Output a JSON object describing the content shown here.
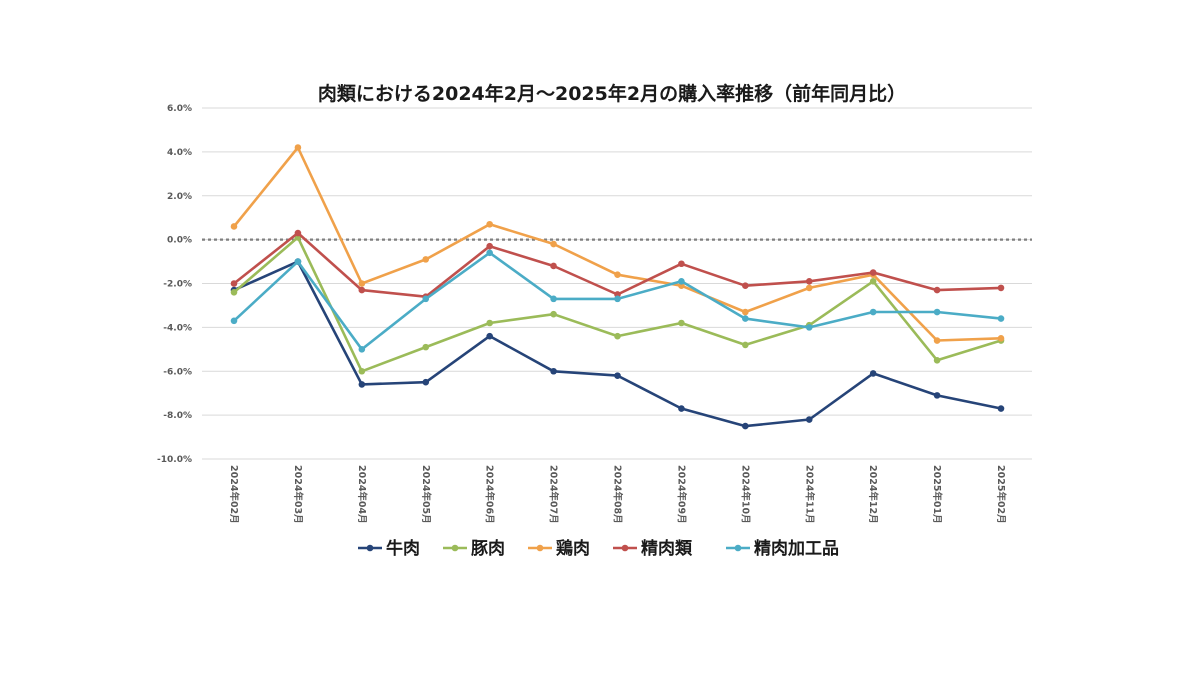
{
  "chart_data": {
    "type": "line",
    "title": "肉類における2024年2月～2025年2月の購入率推移（前年同月比）",
    "xlabel": "",
    "ylabel": "",
    "categories": [
      "2024年02月",
      "2024年03月",
      "2024年04月",
      "2024年05月",
      "2024年06月",
      "2024年07月",
      "2024年08月",
      "2024年09月",
      "2024年10月",
      "2024年11月",
      "2024年12月",
      "2025年01月",
      "2025年02月"
    ],
    "ylim": [
      -10,
      6
    ],
    "yticks": [
      6,
      4,
      2,
      0,
      -2,
      -4,
      -6,
      -8,
      -10
    ],
    "ytick_labels": [
      "6.0%",
      "4.0%",
      "2.0%",
      "0.0%",
      "-2.0%",
      "-4.0%",
      "-6.0%",
      "-8.0%",
      "-10.0%"
    ],
    "grid": true,
    "legend_position": "bottom",
    "reference_line": 0,
    "series": [
      {
        "name": "牛肉",
        "color": "#264478",
        "values": [
          -2.3,
          -1.0,
          -6.6,
          -6.5,
          -4.4,
          -6.0,
          -6.2,
          -7.7,
          -8.5,
          -8.2,
          -6.1,
          -7.1,
          -7.7
        ]
      },
      {
        "name": "豚肉",
        "color": "#9BBB59",
        "values": [
          -2.4,
          0.1,
          -6.0,
          -4.9,
          -3.8,
          -3.4,
          -4.4,
          -3.8,
          -4.8,
          -3.9,
          -1.9,
          -5.5,
          -4.6
        ]
      },
      {
        "name": "鶏肉",
        "color": "#F0A14A",
        "values": [
          0.6,
          4.2,
          -2.0,
          -0.9,
          0.7,
          -0.2,
          -1.6,
          -2.1,
          -3.3,
          -2.2,
          -1.6,
          -4.6,
          -4.5
        ]
      },
      {
        "name": "精肉類",
        "color": "#C0504D",
        "values": [
          -2.0,
          0.3,
          -2.3,
          -2.6,
          -0.3,
          -1.2,
          -2.5,
          -1.1,
          -2.1,
          -1.9,
          -1.5,
          -2.3,
          -2.2
        ]
      },
      {
        "name": "精肉加工品",
        "color": "#4BACC6",
        "values": [
          -3.7,
          -1.0,
          -5.0,
          -2.7,
          -0.6,
          -2.7,
          -2.7,
          -1.9,
          -3.6,
          -4.0,
          -3.3,
          -3.3,
          -3.6
        ]
      }
    ]
  }
}
